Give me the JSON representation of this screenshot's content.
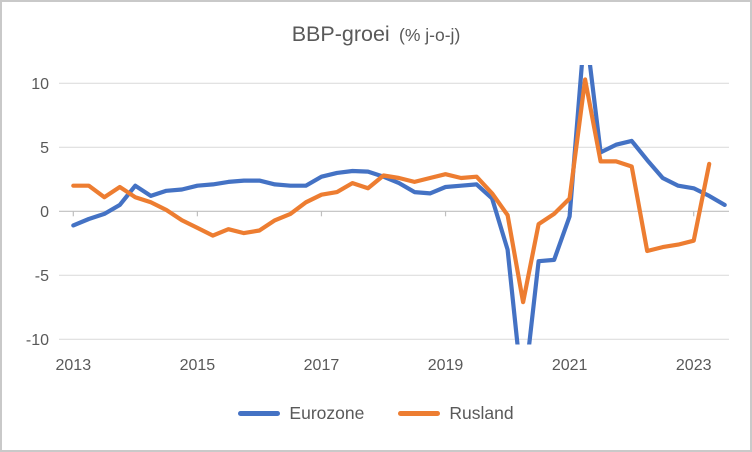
{
  "chart": {
    "title_main": "BBP-groei",
    "title_sub": "(% j-o-j)"
  },
  "colors": {
    "text": "#595959",
    "gridline": "#d9d9d9",
    "axis": "#bfbfbf",
    "background": "#ffffff",
    "border": "#c9c9c9",
    "eurozone": "#4472c4",
    "rusland": "#ed7d31"
  },
  "legend": {
    "items": [
      {
        "label": "Eurozone",
        "color": "#4472c4"
      },
      {
        "label": "Rusland",
        "color": "#ed7d31"
      }
    ]
  },
  "chart_data": {
    "type": "line",
    "title": "BBP-groei (% j-o-j)",
    "x_unit": "quarter",
    "x": [
      "2013Q1",
      "2013Q2",
      "2013Q3",
      "2013Q4",
      "2014Q1",
      "2014Q2",
      "2014Q3",
      "2014Q4",
      "2015Q1",
      "2015Q2",
      "2015Q3",
      "2015Q4",
      "2016Q1",
      "2016Q2",
      "2016Q3",
      "2016Q4",
      "2017Q1",
      "2017Q2",
      "2017Q3",
      "2017Q4",
      "2018Q1",
      "2018Q2",
      "2018Q3",
      "2018Q4",
      "2019Q1",
      "2019Q2",
      "2019Q3",
      "2019Q4",
      "2020Q1",
      "2020Q2",
      "2020Q3",
      "2020Q4",
      "2021Q1",
      "2021Q2",
      "2021Q3",
      "2021Q4",
      "2022Q1",
      "2022Q2",
      "2022Q3",
      "2022Q4",
      "2023Q1",
      "2023Q2",
      "2023Q3"
    ],
    "series": [
      {
        "name": "Eurozone",
        "color": "#4472c4",
        "values": [
          -1.1,
          -0.6,
          -0.2,
          0.5,
          2.0,
          1.2,
          1.6,
          1.7,
          2.0,
          2.1,
          2.3,
          2.4,
          2.4,
          2.1,
          2.0,
          2.0,
          2.7,
          3.0,
          3.15,
          3.1,
          2.7,
          2.2,
          1.5,
          1.4,
          1.9,
          2.0,
          2.1,
          1.0,
          -3.0,
          -14.6,
          -3.9,
          -3.8,
          -0.4,
          14.6,
          4.6,
          5.2,
          5.5,
          4.0,
          2.6,
          2.0,
          1.8,
          1.2,
          0.5
        ]
      },
      {
        "name": "Rusland",
        "color": "#ed7d31",
        "values": [
          2.0,
          2.0,
          1.1,
          1.9,
          1.1,
          0.7,
          0.1,
          -0.7,
          -1.3,
          -1.9,
          -1.4,
          -1.7,
          -1.5,
          -0.7,
          -0.2,
          0.7,
          1.3,
          1.5,
          2.2,
          1.8,
          2.8,
          2.6,
          2.3,
          2.6,
          2.9,
          2.6,
          2.7,
          1.4,
          -0.3,
          -7.1,
          -1.0,
          -0.2,
          1.0,
          10.3,
          3.9,
          3.9,
          3.5,
          -3.1,
          -2.8,
          -2.6,
          -2.3,
          3.7,
          null
        ]
      }
    ],
    "y_ticks": [
      10,
      5,
      0,
      -5,
      -10
    ],
    "x_ticks": [
      "2013",
      "2015",
      "2017",
      "2019",
      "2021",
      "2023"
    ],
    "ylim": [
      -10.4,
      11.4
    ],
    "grid": "horizontal-major",
    "legend_position": "bottom",
    "values_clipped_at_plot_edge": [
      "Eurozone 2020Q2",
      "Eurozone 2021Q2"
    ]
  }
}
